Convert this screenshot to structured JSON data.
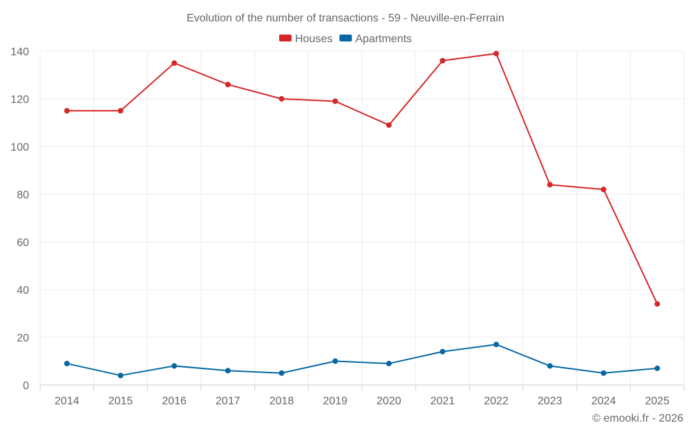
{
  "chart_data": {
    "type": "line",
    "title": "Evolution of the number of transactions - 59 - Neuville-en-Ferrain",
    "categories": [
      "2014",
      "2015",
      "2016",
      "2017",
      "2018",
      "2019",
      "2020",
      "2021",
      "2022",
      "2023",
      "2024",
      "2025"
    ],
    "series": [
      {
        "name": "Houses",
        "color": "#d62728",
        "values": [
          115,
          115,
          135,
          126,
          120,
          119,
          109,
          136,
          139,
          84,
          82,
          34
        ]
      },
      {
        "name": "Apartments",
        "color": "#0868a4",
        "values": [
          9,
          4,
          8,
          6,
          5,
          10,
          9,
          14,
          17,
          8,
          5,
          7
        ]
      }
    ],
    "ylim": [
      0,
      140
    ],
    "yticks": [
      0,
      20,
      40,
      60,
      80,
      100,
      120,
      140
    ],
    "xlabel": "",
    "ylabel": "",
    "grid": true,
    "legend": "top-center"
  },
  "credit": "© emooki.fr - 2026"
}
